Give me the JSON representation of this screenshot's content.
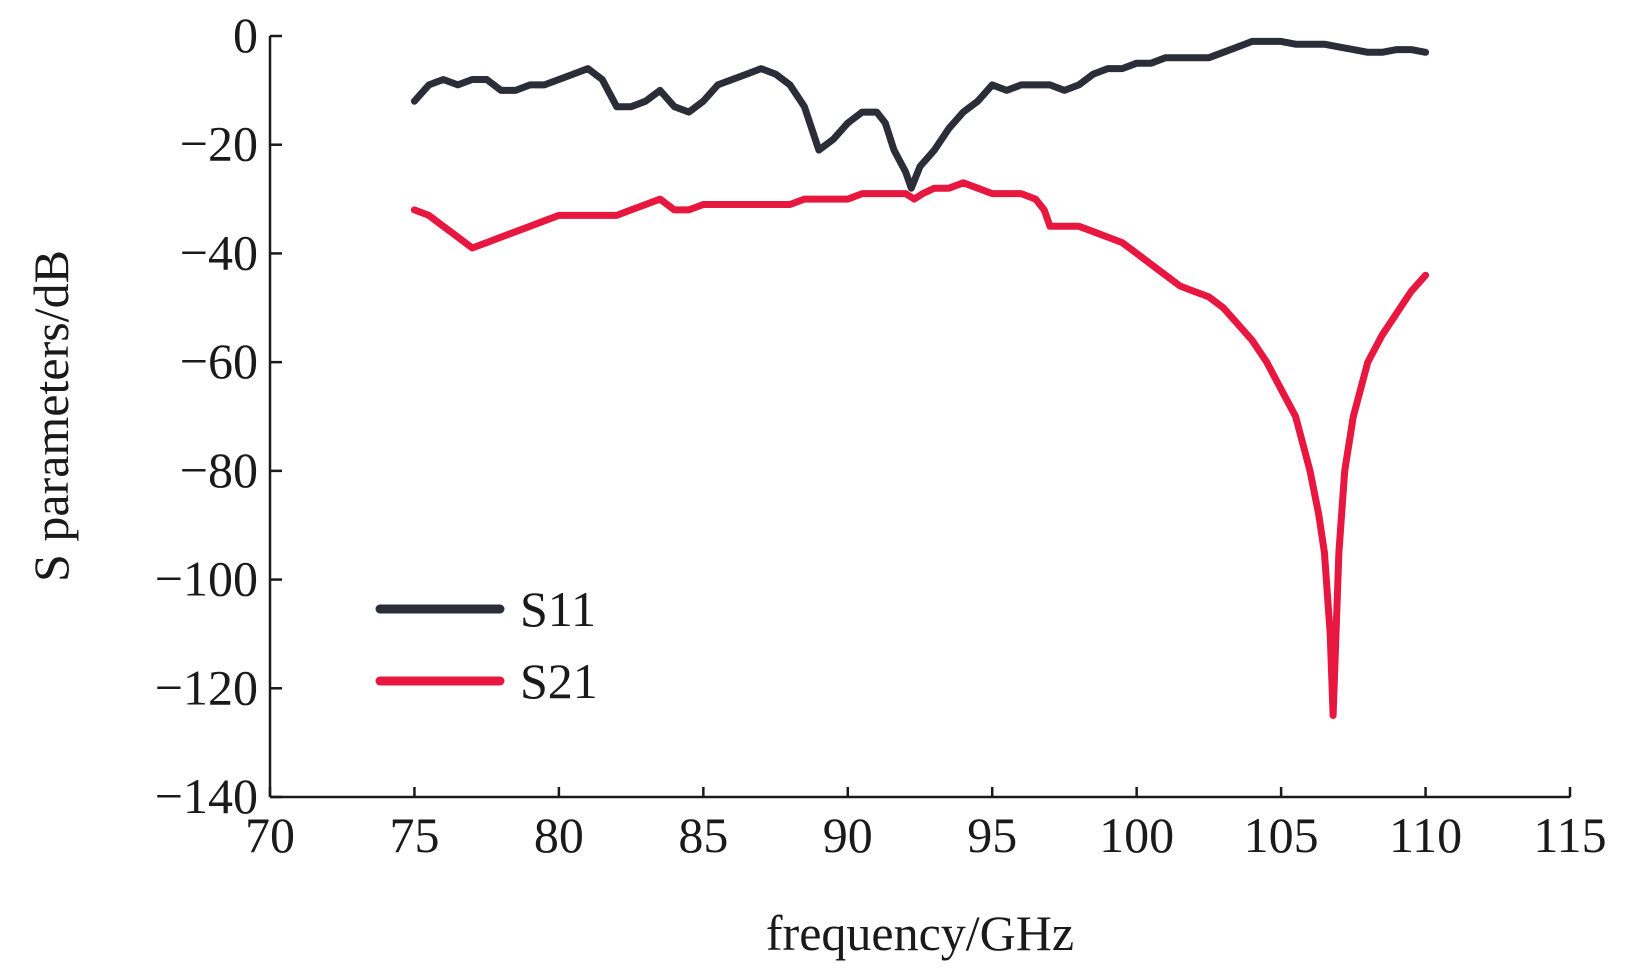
{
  "chart_data": {
    "type": "line",
    "title": "",
    "xlabel": "frequency/GHz",
    "ylabel": "S parameters/dB",
    "xlim": [
      70,
      115
    ],
    "ylim": [
      -140,
      0
    ],
    "xticks": [
      70,
      75,
      80,
      85,
      90,
      95,
      100,
      105,
      110,
      115
    ],
    "yticks": [
      0,
      -20,
      -40,
      -60,
      -80,
      -100,
      -120,
      -140
    ],
    "ytick_labels": [
      "0",
      "−20",
      "−40",
      "−60",
      "−80",
      "−100",
      "−120",
      "−140"
    ],
    "grid": false,
    "legend_position": "lower-left",
    "series": [
      {
        "name": "S11",
        "color": "#2b2d38",
        "x": [
          75,
          75.5,
          76,
          76.5,
          77,
          77.5,
          78,
          78.5,
          79,
          79.5,
          80,
          80.5,
          81,
          81.5,
          82,
          82.5,
          83,
          83.5,
          84,
          84.5,
          85,
          85.5,
          86,
          86.5,
          87,
          87.5,
          88,
          88.5,
          89,
          89.5,
          90,
          90.5,
          91,
          91.3,
          91.6,
          92,
          92.2,
          92.5,
          93,
          93.5,
          94,
          94.5,
          95,
          95.5,
          96,
          96.5,
          97,
          97.5,
          98,
          98.5,
          99,
          99.5,
          100,
          100.5,
          101,
          101.5,
          102,
          102.5,
          103,
          103.5,
          104,
          104.5,
          105,
          105.5,
          106,
          106.5,
          107,
          107.5,
          108,
          108.5,
          109,
          109.5,
          110
        ],
        "values": [
          -12,
          -9,
          -8,
          -9,
          -8,
          -8,
          -10,
          -10,
          -9,
          -9,
          -8,
          -7,
          -6,
          -8,
          -13,
          -13,
          -12,
          -10,
          -13,
          -14,
          -12,
          -9,
          -8,
          -7,
          -6,
          -7,
          -9,
          -13,
          -21,
          -19,
          -16,
          -14,
          -14,
          -16,
          -21,
          -25,
          -28,
          -24,
          -21,
          -17,
          -14,
          -12,
          -9,
          -10,
          -9,
          -9,
          -9,
          -10,
          -9,
          -7,
          -6,
          -6,
          -5,
          -5,
          -4,
          -4,
          -4,
          -4,
          -3,
          -2,
          -1,
          -1,
          -1,
          -1.5,
          -1.5,
          -1.5,
          -2,
          -2.5,
          -3,
          -3,
          -2.5,
          -2.5,
          -3
        ]
      },
      {
        "name": "S21",
        "color": "#e8173f",
        "x": [
          75,
          75.5,
          76,
          76.5,
          77,
          77.5,
          78,
          78.5,
          79,
          79.5,
          80,
          80.5,
          81,
          81.5,
          82,
          82.5,
          83,
          83.5,
          84,
          84.5,
          85,
          85.5,
          86,
          86.5,
          87,
          87.5,
          88,
          88.5,
          89,
          89.5,
          90,
          90.5,
          91,
          91.5,
          92,
          92.3,
          92.6,
          93,
          93.5,
          94,
          94.5,
          95,
          95.5,
          96,
          96.5,
          96.8,
          97,
          97.5,
          98,
          98.5,
          99,
          99.5,
          100,
          100.5,
          101,
          101.5,
          102,
          102.5,
          103,
          103.5,
          104,
          104.5,
          105,
          105.5,
          106,
          106.3,
          106.5,
          106.7,
          106.8,
          106.9,
          107,
          107.2,
          107.5,
          108,
          108.5,
          109,
          109.5,
          110
        ],
        "values": [
          -32,
          -33,
          -35,
          -37,
          -39,
          -38,
          -37,
          -36,
          -35,
          -34,
          -33,
          -33,
          -33,
          -33,
          -33,
          -32,
          -31,
          -30,
          -32,
          -32,
          -31,
          -31,
          -31,
          -31,
          -31,
          -31,
          -31,
          -30,
          -30,
          -30,
          -30,
          -29,
          -29,
          -29,
          -29,
          -30,
          -29,
          -28,
          -28,
          -27,
          -28,
          -29,
          -29,
          -29,
          -30,
          -32,
          -35,
          -35,
          -35,
          -36,
          -37,
          -38,
          -40,
          -42,
          -44,
          -46,
          -47,
          -48,
          -50,
          -53,
          -56,
          -60,
          -65,
          -70,
          -80,
          -88,
          -95,
          -110,
          -125,
          -110,
          -95,
          -80,
          -70,
          -60,
          -55,
          -51,
          -47,
          -44
        ]
      }
    ]
  }
}
